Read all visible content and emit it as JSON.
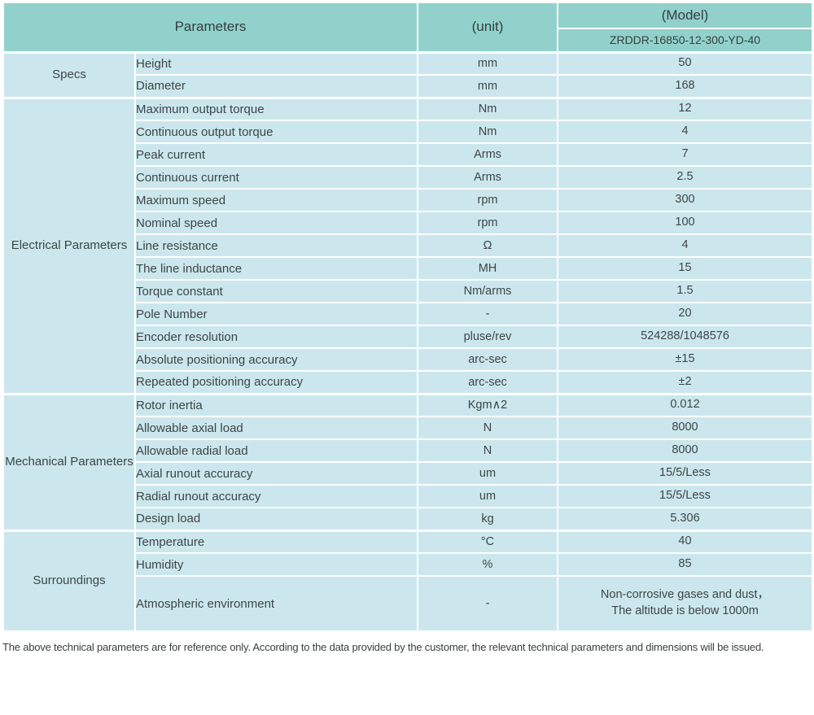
{
  "colors": {
    "header_teal": "#92d1cb",
    "cell_blue": "#cbe7ed",
    "border_white": "#ffffff",
    "text_dark": "#3d4547"
  },
  "header": {
    "parameters_label": "Parameters",
    "unit_label": "(unit)",
    "model_label": "(Model)",
    "model_value": "ZRDDR-16850-12-300-YD-40"
  },
  "sections": [
    {
      "name": "Specs",
      "rows": [
        {
          "parameter": "Height",
          "unit": "mm",
          "value": "50"
        },
        {
          "parameter": "Diameter",
          "unit": "mm",
          "value": "168"
        }
      ]
    },
    {
      "name": "Electrical Parameters",
      "rows": [
        {
          "parameter": "Maximum output torque",
          "unit": "Nm",
          "value": "12"
        },
        {
          "parameter": "Continuous output torque",
          "unit": "Nm",
          "value": "4"
        },
        {
          "parameter": "Peak current",
          "unit": "Arms",
          "value": "7"
        },
        {
          "parameter": "Continuous current",
          "unit": "Arms",
          "value": "2.5"
        },
        {
          "parameter": "Maximum speed",
          "unit": "rpm",
          "value": "300"
        },
        {
          "parameter": "Nominal speed",
          "unit": "rpm",
          "value": "100"
        },
        {
          "parameter": "Line resistance",
          "unit": "Ω",
          "value": "4"
        },
        {
          "parameter": "The line inductance",
          "unit": "MH",
          "value": "15"
        },
        {
          "parameter": "Torque constant",
          "unit": "Nm/arms",
          "value": "1.5"
        },
        {
          "parameter": "Pole Number",
          "unit": "-",
          "value": "20"
        },
        {
          "parameter": "Encoder resolution",
          "unit": "pluse/rev",
          "value": "524288/1048576"
        },
        {
          "parameter": "Absolute positioning accuracy",
          "unit": "arc-sec",
          "value": "±15"
        },
        {
          "parameter": "Repeated positioning accuracy",
          "unit": "arc-sec",
          "value": "±2"
        }
      ]
    },
    {
      "name": "Mechanical Parameters",
      "rows": [
        {
          "parameter": "Rotor inertia",
          "unit": "Kgm∧2",
          "value": "0.012"
        },
        {
          "parameter": "Allowable axial load",
          "unit": "N",
          "value": "8000"
        },
        {
          "parameter": "Allowable radial load",
          "unit": "N",
          "value": "8000"
        },
        {
          "parameter": "Axial runout accuracy",
          "unit": "um",
          "value": "15/5/Less"
        },
        {
          "parameter": "Radial runout accuracy",
          "unit": "um",
          "value": "15/5/Less"
        },
        {
          "parameter": "Design load",
          "unit": "kg",
          "value": "5.306"
        }
      ]
    },
    {
      "name": "Surroundings",
      "rows": [
        {
          "parameter": "Temperature",
          "unit": "°C",
          "value": "40"
        },
        {
          "parameter": "Humidity",
          "unit": "%",
          "value": "85"
        },
        {
          "parameter": "Atmospheric environment",
          "unit": "-",
          "value": "Non-corrosive gases and dust，\nThe altitude is below 1000m",
          "tall": true
        }
      ]
    }
  ],
  "footnote": "The above technical parameters are for reference only. According to the data provided by the customer, the relevant technical parameters and dimensions will be issued."
}
